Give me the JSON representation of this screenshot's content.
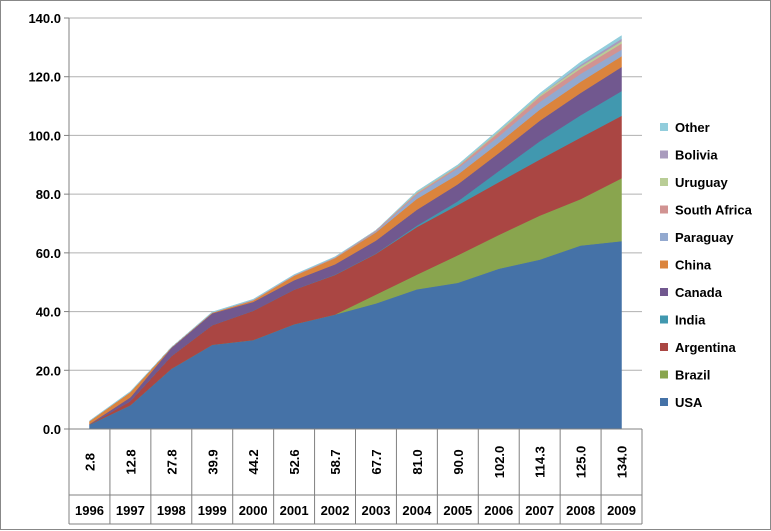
{
  "chart_data": {
    "type": "area",
    "stacked": true,
    "categories": [
      "1996",
      "1997",
      "1998",
      "1999",
      "2000",
      "2001",
      "2002",
      "2003",
      "2004",
      "2005",
      "2006",
      "2007",
      "2008",
      "2009"
    ],
    "totals": [
      "2.8",
      "12.8",
      "27.8",
      "39.9",
      "44.2",
      "52.6",
      "58.7",
      "67.7",
      "81.0",
      "90.0",
      "102.0",
      "114.3",
      "125.0",
      "134.0"
    ],
    "ylim": [
      0,
      140
    ],
    "yticks": [
      "0.0",
      "20.0",
      "40.0",
      "60.0",
      "80.0",
      "100.0",
      "120.0",
      "140.0"
    ],
    "title": "",
    "xlabel": "",
    "ylabel": "",
    "grid": "horizontal",
    "legend_position": "right",
    "series": [
      {
        "name": "USA",
        "color": "#4572A7",
        "values": [
          1.5,
          8.1,
          20.5,
          28.7,
          30.3,
          35.7,
          39.0,
          42.8,
          47.6,
          49.8,
          54.6,
          57.7,
          62.5,
          64.0
        ]
      },
      {
        "name": "Brazil",
        "color": "#89A54E",
        "values": [
          0,
          0,
          0,
          0,
          0,
          0,
          0,
          3.0,
          5.0,
          9.4,
          11.5,
          15.0,
          15.8,
          21.4
        ]
      },
      {
        "name": "Argentina",
        "color": "#AA4643",
        "values": [
          0.1,
          1.4,
          4.3,
          6.7,
          10.0,
          11.8,
          13.5,
          13.9,
          16.2,
          17.1,
          18.0,
          19.1,
          21.0,
          21.3
        ]
      },
      {
        "name": "India",
        "color": "#4198AF",
        "values": [
          0,
          0,
          0,
          0,
          0,
          0,
          0.1,
          0.1,
          0.5,
          1.3,
          3.8,
          6.2,
          7.6,
          8.4
        ]
      },
      {
        "name": "Canada",
        "color": "#71588F",
        "values": [
          0.1,
          1.3,
          2.8,
          4.0,
          3.0,
          3.2,
          3.5,
          4.4,
          5.4,
          5.8,
          6.1,
          7.0,
          7.6,
          8.2
        ]
      },
      {
        "name": "China",
        "color": "#DB843D",
        "values": [
          1.0,
          1.8,
          0.2,
          0.3,
          0.5,
          1.5,
          2.1,
          2.8,
          3.7,
          3.3,
          3.5,
          3.8,
          3.8,
          3.7
        ]
      },
      {
        "name": "Paraguay",
        "color": "#93A9CF",
        "values": [
          0,
          0,
          0,
          0,
          0,
          0,
          0,
          0.3,
          1.5,
          2.1,
          2.2,
          2.6,
          2.7,
          2.2
        ]
      },
      {
        "name": "South Africa",
        "color": "#D19392",
        "values": [
          0,
          0,
          0,
          0,
          0.2,
          0.2,
          0.3,
          0.4,
          0.5,
          0.5,
          1.4,
          1.8,
          1.8,
          2.1
        ]
      },
      {
        "name": "Uruguay",
        "color": "#B9CD96",
        "values": [
          0,
          0,
          0,
          0,
          0,
          0,
          0,
          0,
          0.3,
          0.3,
          0.4,
          0.5,
          0.7,
          0.8
        ]
      },
      {
        "name": "Bolivia",
        "color": "#A99BBD",
        "values": [
          0,
          0,
          0,
          0,
          0,
          0,
          0,
          0,
          0,
          0,
          0,
          0,
          0.6,
          0.8
        ]
      },
      {
        "name": "Other",
        "color": "#92CDDC",
        "values": [
          0.1,
          0.2,
          0,
          0.2,
          0.2,
          0.2,
          0.2,
          0,
          0.3,
          0.4,
          0.5,
          0.6,
          0.9,
          1.1
        ]
      }
    ]
  }
}
